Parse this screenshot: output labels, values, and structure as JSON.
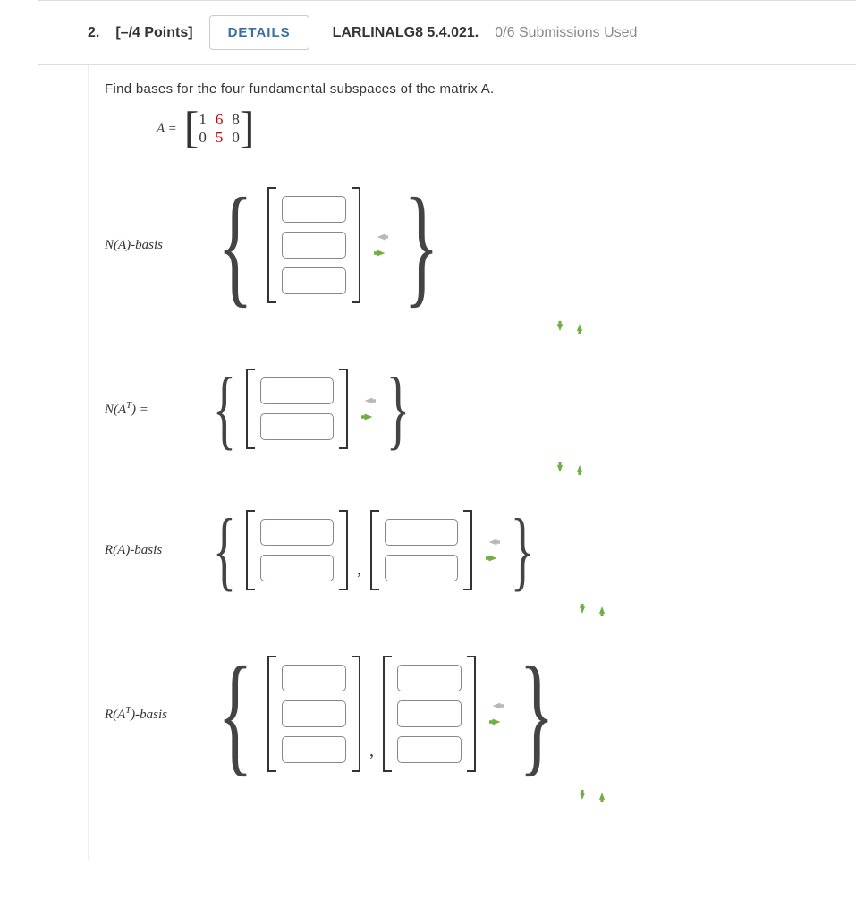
{
  "header": {
    "qnum": "2.",
    "points": "[–/4 Points]",
    "details_label": "DETAILS",
    "qcode": "LARLINALG8 5.4.021.",
    "submissions": "0/6 Submissions Used"
  },
  "prompt": "Find bases for the four fundamental subspaces of the matrix A.",
  "matrix": {
    "label": "A =",
    "rows": [
      [
        "1",
        "6",
        "8"
      ],
      [
        "0",
        "5",
        "0"
      ]
    ],
    "red_cols": [
      1
    ],
    "bracket_color": "#333333"
  },
  "arrows": {
    "left_color": "#b8b8b8",
    "right_color": "#6fae3f",
    "down_color": "#6fae3f",
    "up_color": "#6fae3f"
  },
  "bases": [
    {
      "key": "NA",
      "label_html": "N(A)-basis",
      "vectors": [
        {
          "rows": 3,
          "values": [
            "",
            "",
            ""
          ],
          "cell_width": "w1"
        }
      ],
      "brace_size": "b3"
    },
    {
      "key": "NAT",
      "label_html": "N(Aᵀ) =",
      "label_sup": "T",
      "label_pre": "N(A",
      "label_post": ") =",
      "vectors": [
        {
          "rows": 2,
          "values": [
            "",
            ""
          ],
          "cell_width": "w2"
        }
      ],
      "brace_size": "b2"
    },
    {
      "key": "RA",
      "label_html": "R(A)-basis",
      "vectors": [
        {
          "rows": 2,
          "values": [
            "",
            ""
          ],
          "cell_width": "w2"
        },
        {
          "rows": 2,
          "values": [
            "",
            ""
          ],
          "cell_width": "w2"
        }
      ],
      "brace_size": "b2"
    },
    {
      "key": "RAT",
      "label_html": "R(Aᵀ)-basis",
      "label_sup": "T",
      "label_pre": "R(A",
      "label_post": ")-basis",
      "vectors": [
        {
          "rows": 3,
          "values": [
            "",
            "",
            ""
          ],
          "cell_width": "w1"
        },
        {
          "rows": 3,
          "values": [
            "",
            "",
            ""
          ],
          "cell_width": "w1"
        }
      ],
      "brace_size": "b3"
    }
  ],
  "styling": {
    "input_border": "#888888",
    "input_radius": 5,
    "bracket_stroke": "#333333",
    "brace_color": "#444444",
    "background": "#ffffff",
    "header_border": "#dddddd",
    "details_text_color": "#3b6ea5",
    "red": "#cc0000"
  }
}
